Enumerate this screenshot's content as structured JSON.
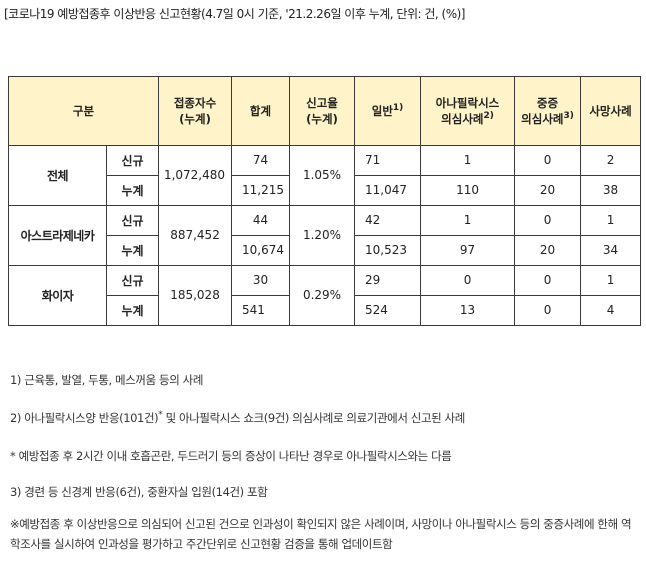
{
  "title": "[코로나19 예방접종후 이상반응 신고현황(4.7일 0시 기준, '21.2.26일 이후 누계, 단위: 건, (%)]",
  "headers": {
    "category": "구분",
    "vaccinated": [
      "접종자수",
      "(누계)"
    ],
    "total": "합계",
    "report_rate": [
      "신고율",
      "(누계)"
    ],
    "general": "일반",
    "general_fn": "1)",
    "anaphylaxis": [
      "아나필락시스",
      "의심사례"
    ],
    "anaphylaxis_fn": "2)",
    "severe": [
      "중증",
      "의심사례"
    ],
    "severe_fn": "3)",
    "death": "사망사례"
  },
  "labels": {
    "new": "신규",
    "cumulative": "누계"
  },
  "rows": [
    {
      "group": "전체",
      "vaccinated": "1,072,480",
      "report_rate": "1.05%",
      "new": {
        "total": "74",
        "general": "71",
        "anaphylaxis": "1",
        "severe": "0",
        "death": "2"
      },
      "cumulative": {
        "total": "11,215",
        "general": "11,047",
        "anaphylaxis": "110",
        "severe": "20",
        "death": "38"
      }
    },
    {
      "group": "아스트라제네카",
      "vaccinated": "887,452",
      "report_rate": "1.20%",
      "new": {
        "total": "44",
        "general": "42",
        "anaphylaxis": "1",
        "severe": "0",
        "death": "1"
      },
      "cumulative": {
        "total": "10,674",
        "general": "10,523",
        "anaphylaxis": "97",
        "severe": "20",
        "death": "34"
      }
    },
    {
      "group": "화이자",
      "vaccinated": "185,028",
      "report_rate": "0.29%",
      "new": {
        "total": "30",
        "general": "29",
        "anaphylaxis": "0",
        "severe": "0",
        "death": "1"
      },
      "cumulative": {
        "total": "541",
        "general": "524",
        "anaphylaxis": "13",
        "severe": "0",
        "death": "4"
      }
    }
  ],
  "notes": {
    "n1": "1) 근육통, 발열, 두통, 메스꺼움 등의 사례",
    "n2a": "2) 아나필락시스양 반응(101건)",
    "n2_star": "*",
    "n2b": " 및 아나필락시스 쇼크(9건) 의심사례로 의료기관에서 신고된 사례",
    "n_star": "* 예방접종 후 2시간 이내 호흡곤란, 두드러기 등의 증상이 나타난 경우로 아나필락시스와는 다름",
    "n3": "3) 경련 등 신경계 반응(6건), 중환자실 입원(14건) 포함",
    "n_ref": "※예방접종 후 이상반응으로 의심되어 신고된 건으로 인과성이 확인되지 않은 사례이며, 사망이나 아나필락시스 등의 중증사례에 한해 역학조사를 실시하여 인과성을 평가하고 주간단위로 신고현황 검증을 통해 업데이트함"
  }
}
